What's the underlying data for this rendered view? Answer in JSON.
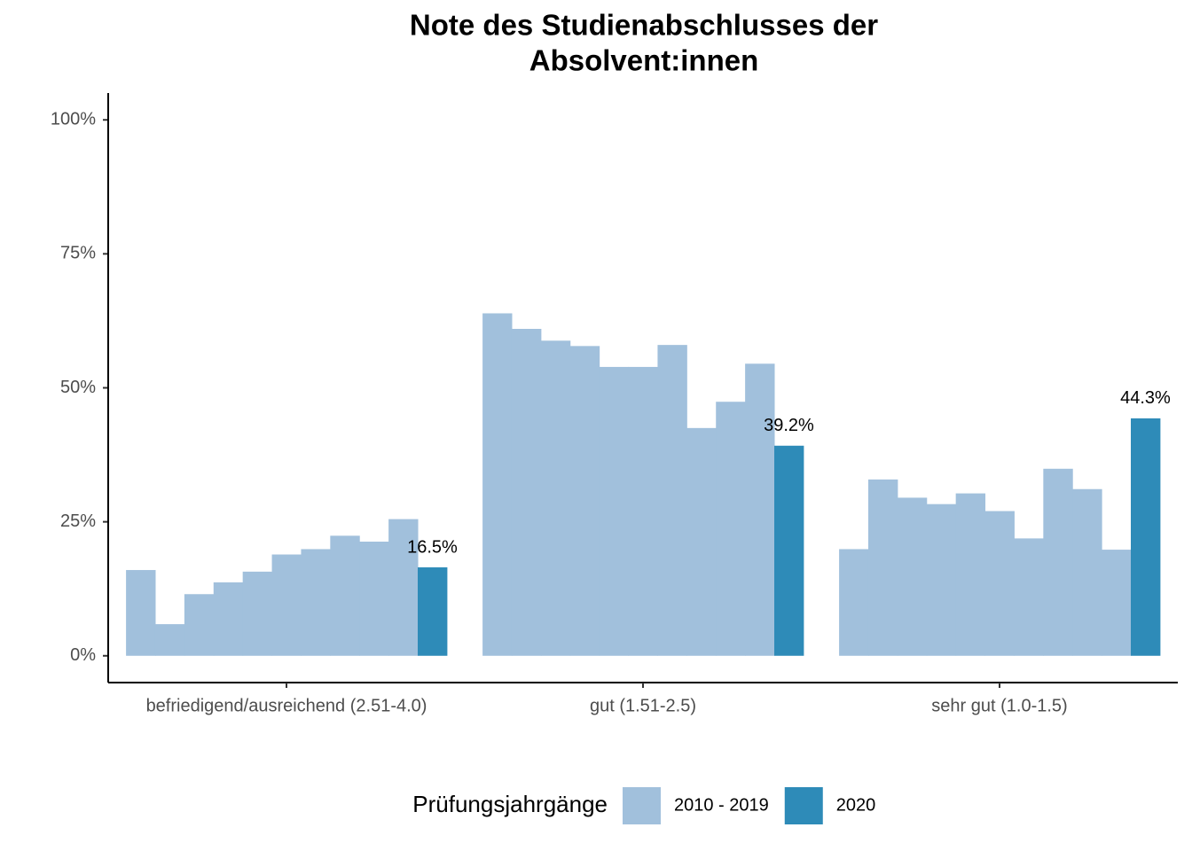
{
  "chart_data": {
    "type": "bar",
    "title": [
      "Note des Studienabschlusses der",
      "Absolvent:innen"
    ],
    "categories": [
      "befriedigend/ausreichend (2.51-4.0)",
      "gut (1.51-2.5)",
      "sehr gut (1.0-1.5)"
    ],
    "series": [
      {
        "name": "2010 - 2019",
        "color": "#a1c0dc",
        "values": [
          [
            16.0,
            5.9,
            11.5,
            13.7,
            15.7,
            18.9,
            19.9,
            22.4,
            21.3,
            25.5
          ],
          [
            63.9,
            61.0,
            58.8,
            57.8,
            53.9,
            53.9,
            58.0,
            42.5,
            47.4,
            54.5
          ],
          [
            19.9,
            32.9,
            29.5,
            28.3,
            30.3,
            27.0,
            21.9,
            34.9,
            31.1,
            19.8
          ]
        ]
      },
      {
        "name": "2020",
        "color": "#2e8bb8",
        "values": [
          16.5,
          39.2,
          44.3
        ],
        "value_labels": [
          "16.5%",
          "39.2%",
          "44.3%"
        ]
      }
    ],
    "ylim": [
      -5,
      105
    ],
    "yticks": [
      {
        "value": 0,
        "label": "0%"
      },
      {
        "value": 25,
        "label": "25%"
      },
      {
        "value": 50,
        "label": "50%"
      },
      {
        "value": 75,
        "label": "75%"
      },
      {
        "value": 100,
        "label": "100%"
      }
    ],
    "grid": false,
    "legend_title": "Prüfungsjahrgänge",
    "legend_position": "bottom"
  }
}
